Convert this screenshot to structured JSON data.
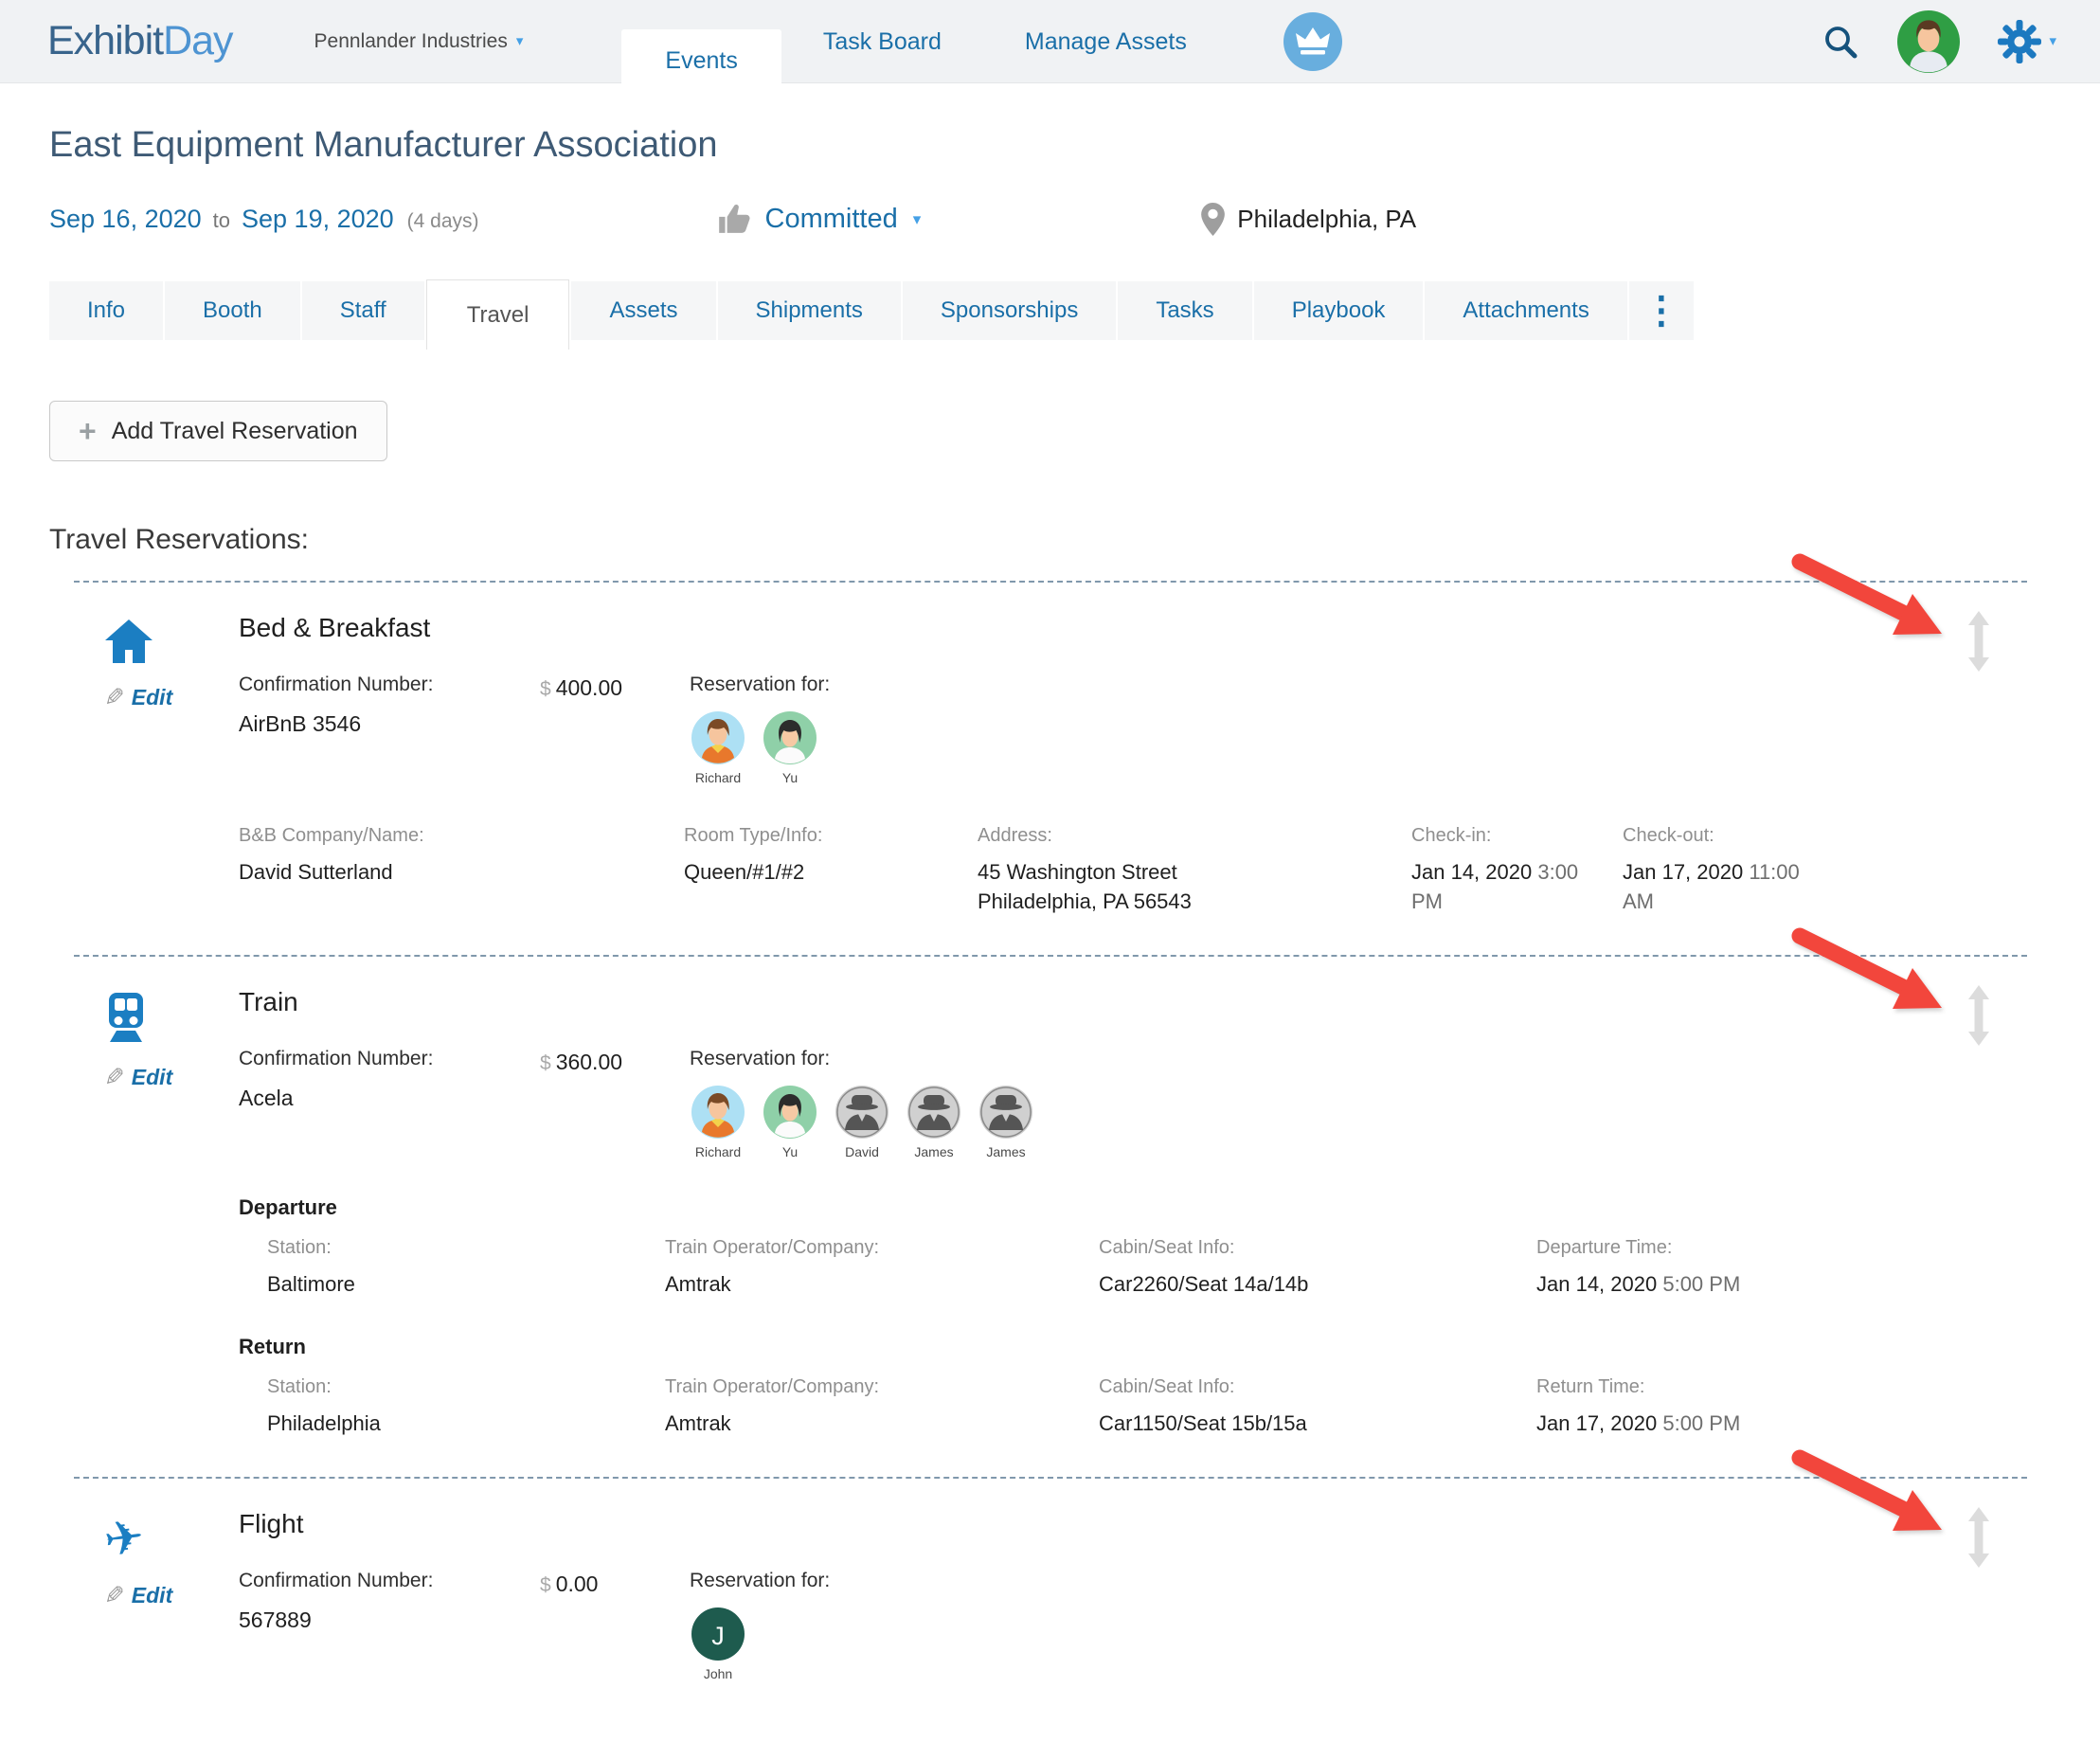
{
  "header": {
    "logo_exhibit": "Exhibit",
    "logo_day": "Day",
    "workspace": "Pennlander Industries",
    "nav": [
      {
        "label": "Events",
        "active": true
      },
      {
        "label": "Task Board",
        "active": false
      },
      {
        "label": "Manage Assets",
        "active": false
      }
    ]
  },
  "icons": {
    "caret_down": "▾",
    "plus": "+",
    "pencil": "✎",
    "plane_glyph": "✈",
    "kebab": "⋮",
    "search": "magnifier-icon",
    "settings": "gear-icon",
    "premium": "crown-icon",
    "location": "map-pin-icon",
    "status_thumb": "thumbs-up-icon",
    "reorder": "vertical-drag-arrow-icon"
  },
  "event": {
    "title": "East Equipment Manufacturer Association",
    "start_date": "Sep 16, 2020",
    "to_label": "to",
    "end_date": "Sep 19, 2020",
    "duration": "(4 days)",
    "status": "Committed",
    "location": "Philadelphia, PA"
  },
  "tabs": [
    "Info",
    "Booth",
    "Staff",
    "Travel",
    "Assets",
    "Shipments",
    "Sponsorships",
    "Tasks",
    "Playbook",
    "Attachments"
  ],
  "active_tab": "Travel",
  "travel": {
    "add_button_label": "Add Travel Reservation",
    "section_title": "Travel Reservations:",
    "edit_label": "Edit",
    "reservations": [
      {
        "title": "Bed & Breakfast",
        "icon": "house",
        "confirmation_label": "Confirmation Number:",
        "confirmation_value": "AirBnB 3546",
        "currency": "$",
        "cost": "400.00",
        "reservation_for_label": "Reservation for:",
        "attendees": [
          {
            "name": "Richard",
            "avatar": "richard"
          },
          {
            "name": "Yu",
            "avatar": "yu"
          }
        ],
        "sections": [
          {
            "heading": "",
            "fields": [
              {
                "label": "B&B Company/Name:",
                "value": "David Sutterland"
              },
              {
                "label": "Room Type/Info:",
                "value": "Queen/#1/#2"
              },
              {
                "label": "Address:",
                "value": "45 Washington Street Philadelphia, PA 56543"
              },
              {
                "label": "Check-in:",
                "value": "Jan 14, 2020",
                "time": "3:00 PM"
              },
              {
                "label": "Check-out:",
                "value": "Jan 17, 2020",
                "time": "11:00 AM"
              }
            ]
          }
        ]
      },
      {
        "title": "Train",
        "icon": "train",
        "confirmation_label": "Confirmation Number:",
        "confirmation_value": "Acela",
        "currency": "$",
        "cost": "360.00",
        "reservation_for_label": "Reservation for:",
        "attendees": [
          {
            "name": "Richard",
            "avatar": "richard"
          },
          {
            "name": "Yu",
            "avatar": "yu"
          },
          {
            "name": "David",
            "avatar": "spy"
          },
          {
            "name": "James",
            "avatar": "spy"
          },
          {
            "name": "James",
            "avatar": "spy"
          }
        ],
        "sections": [
          {
            "heading": "Departure",
            "fields": [
              {
                "label": "Station:",
                "value": "Baltimore"
              },
              {
                "label": "Train Operator/Company:",
                "value": "Amtrak"
              },
              {
                "label": "Cabin/Seat Info:",
                "value": "Car2260/Seat 14a/14b"
              },
              {
                "label": "Departure Time:",
                "value": "Jan 14, 2020",
                "time": "5:00 PM"
              }
            ]
          },
          {
            "heading": "Return",
            "fields": [
              {
                "label": "Station:",
                "value": "Philadelphia"
              },
              {
                "label": "Train Operator/Company:",
                "value": "Amtrak"
              },
              {
                "label": "Cabin/Seat Info:",
                "value": "Car1150/Seat 15b/15a"
              },
              {
                "label": "Return Time:",
                "value": "Jan 17, 2020",
                "time": "5:00 PM"
              }
            ]
          }
        ]
      },
      {
        "title": "Flight",
        "icon": "plane",
        "confirmation_label": "Confirmation Number:",
        "confirmation_value": "567889",
        "currency": "$",
        "cost": "0.00",
        "reservation_for_label": "Reservation for:",
        "attendees": [
          {
            "name": "John",
            "avatar": "initial",
            "initial": "J"
          }
        ],
        "sections": []
      }
    ]
  },
  "colors": {
    "accent_blue": "#1a6fa8",
    "icon_blue": "#1b7ec2",
    "logo_dark": "#38648c",
    "logo_light": "#4e94d2",
    "annotation_arrow_red": "#f2463c",
    "dashed_divider": "#8098ac",
    "crown_badge_bg": "#68aede",
    "flight_attendee_avatar_bg": "#1e5b4e"
  }
}
